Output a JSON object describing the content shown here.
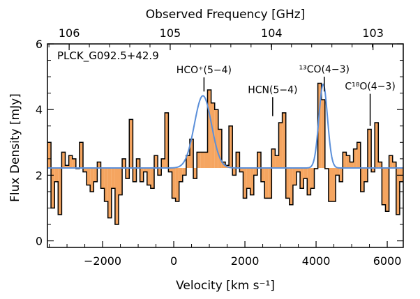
{
  "chart_data": {
    "type": "step-histogram",
    "source_name": "PLCK_G092.5+42.9",
    "xlabel": "Velocity [km s⁻¹]",
    "ylabel": "Flux Density [mJy]",
    "top_xlabel": "Observed Frequency [GHz]",
    "xlim": [
      -3550,
      6450
    ],
    "ylim": [
      -0.2,
      6.0
    ],
    "baseline": 2.22,
    "bottom_ticks": [
      {
        "value": -2000,
        "label": "−2000"
      },
      {
        "value": 0,
        "label": "0"
      },
      {
        "value": 2000,
        "label": "2000"
      },
      {
        "value": 4000,
        "label": "4000"
      },
      {
        "value": 6000,
        "label": "6000"
      }
    ],
    "left_ticks": [
      {
        "value": 0,
        "label": "0"
      },
      {
        "value": 2,
        "label": "2"
      },
      {
        "value": 4,
        "label": "4"
      },
      {
        "value": 6,
        "label": "6"
      }
    ],
    "top_ticks": [
      {
        "value": -2940,
        "label": "106"
      },
      {
        "value": -100,
        "label": "105"
      },
      {
        "value": 2750,
        "label": "104"
      },
      {
        "value": 5600,
        "label": "103"
      }
    ],
    "bin_width": 100,
    "bins_start": -3550,
    "flux": [
      3.0,
      1.0,
      1.8,
      0.8,
      2.7,
      2.3,
      2.6,
      2.5,
      2.2,
      3.0,
      2.1,
      1.7,
      1.5,
      1.8,
      2.4,
      1.6,
      1.2,
      0.7,
      1.6,
      0.5,
      1.4,
      2.5,
      1.9,
      3.7,
      1.8,
      2.5,
      1.8,
      2.1,
      1.7,
      1.6,
      2.6,
      2.0,
      2.5,
      3.9,
      2.1,
      1.3,
      1.2,
      1.8,
      2.0,
      2.6,
      3.1,
      1.9,
      2.7,
      2.7,
      2.7,
      4.6,
      4.2,
      4.0,
      3.4,
      2.4,
      2.3,
      3.5,
      2.0,
      2.7,
      2.1,
      1.3,
      1.6,
      1.4,
      2.0,
      2.7,
      1.8,
      1.3,
      1.3,
      2.8,
      2.6,
      3.6,
      3.9,
      1.3,
      1.1,
      1.7,
      2.1,
      1.6,
      1.9,
      1.4,
      1.6,
      2.2,
      4.8,
      4.3,
      2.2,
      1.2,
      1.2,
      2.0,
      1.8,
      2.7,
      2.6,
      2.4,
      2.8,
      3.0,
      1.5,
      1.8,
      3.4,
      2.1,
      3.6,
      2.4,
      1.1,
      0.9,
      2.6,
      2.4,
      0.8,
      1.8
    ],
    "gaussian_fits": [
      {
        "line": "HCO+(5-4)",
        "center": 820,
        "amplitude": 2.2,
        "sigma": 240
      },
      {
        "line": "13CO(4-3)",
        "center": 4200,
        "amplitude": 2.55,
        "sigma": 120
      }
    ],
    "line_markers": [
      {
        "label": "HCO⁺(5−4)",
        "velocity": 850,
        "y_top": 4.98,
        "y_bottom": 4.55
      },
      {
        "label": "HCN(5−4)",
        "velocity": 2780,
        "y_top": 4.38,
        "y_bottom": 3.8
      },
      {
        "label": "¹³CO(4−3)",
        "velocity": 4230,
        "y_top": 5.0,
        "y_bottom": 4.55
      },
      {
        "label": "C¹⁸O(4−3)",
        "velocity": 5520,
        "y_top": 4.48,
        "y_bottom": 3.5
      }
    ],
    "colors": {
      "fill": "#f5a560",
      "fit": "#5b8fd9",
      "frame": "#000000",
      "step": "#000000"
    }
  }
}
